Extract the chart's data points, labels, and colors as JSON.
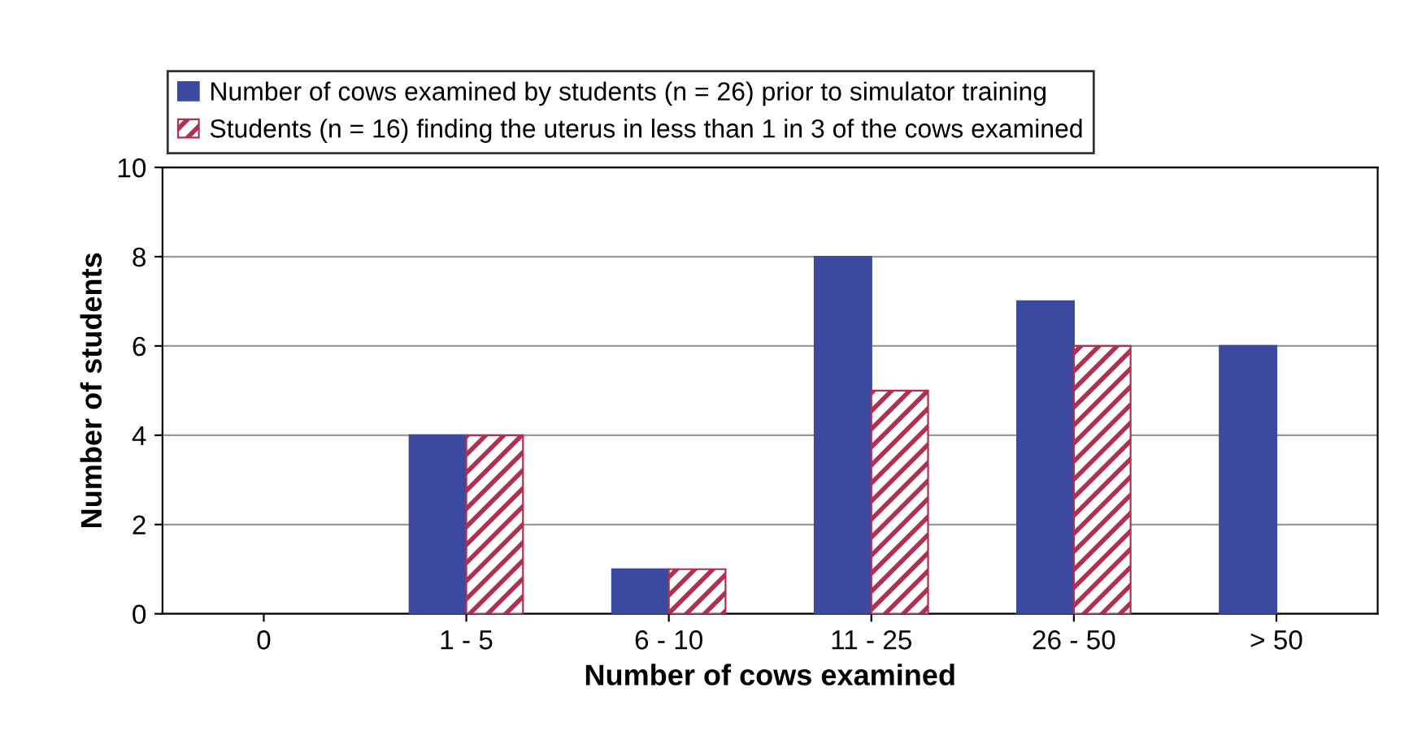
{
  "chart_data": {
    "type": "bar",
    "xlabel": "Number of cows examined",
    "ylabel": "Number of students",
    "categories": [
      "0",
      "1 - 5",
      "6 - 10",
      "11 - 25",
      "26 - 50",
      "> 50"
    ],
    "series": [
      {
        "name": "Number of cows examined by students (n = 26) prior to simulator training",
        "color": "#3b4a9e",
        "values": [
          0,
          4,
          1,
          8,
          7,
          6
        ]
      },
      {
        "name": "Students (n = 16) finding the uterus in less than 1 in 3 of the cows examined",
        "color": "#b03050",
        "values": [
          0,
          4,
          1,
          5,
          6,
          0
        ]
      }
    ],
    "ylim": [
      0,
      10
    ],
    "yticks": [
      0,
      2,
      4,
      6,
      8,
      10
    ],
    "grid": "y",
    "legend": "top"
  }
}
